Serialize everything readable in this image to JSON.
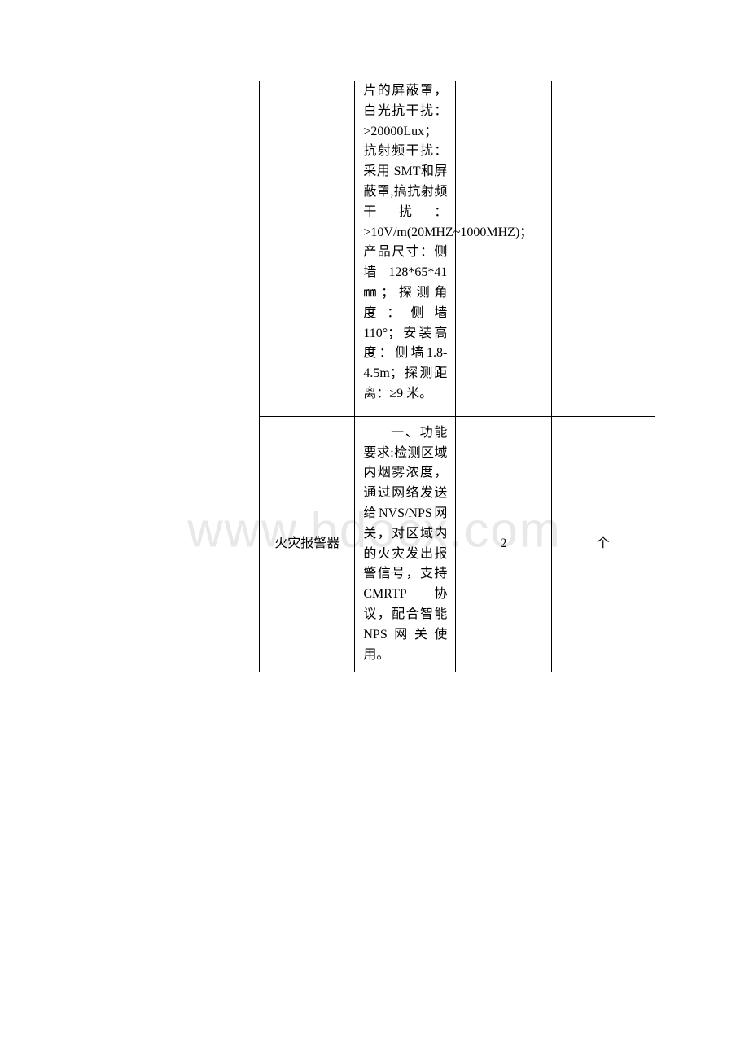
{
  "watermark": "www.bdocx.com",
  "table": {
    "border_color": "#000000",
    "font_family": "SimSun",
    "font_size": 16,
    "text_color": "#000000",
    "background_color": "#ffffff",
    "columns": [
      "col1",
      "col2",
      "col3",
      "col4",
      "col5",
      "col6"
    ],
    "column_widths_pct": [
      12.5,
      17,
      17,
      18,
      17,
      18.5
    ],
    "rows": [
      {
        "col1": "",
        "col2": "",
        "col3": "",
        "col4": "片的屏蔽罩，白光抗干扰：>20000Lux；抗射频干扰：采用 SMT和屏蔽罩,搞抗射频干扰：>10V/m(20MHZ~1000MHZ)；产品尺寸：侧墙128*65*41㎜；探测角度：侧墙 110°；安装高度：侧墙1.8-4.5m；探测距离：≥9 米。",
        "col5": "",
        "col6": ""
      },
      {
        "col3": "火灾报警器",
        "col4_prefix": "一、",
        "col4": "功能要求:检测区域内烟雾浓度，通过网络发送给NVS/NPS网关，对区域内的火灾发出报警信号，支持CMRTP 协议，配合智能 NPS网关使用。",
        "col5": "2",
        "col6": "个"
      }
    ]
  }
}
